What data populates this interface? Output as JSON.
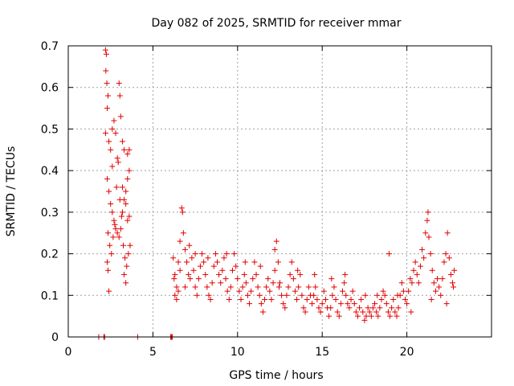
{
  "chart_data": {
    "type": "scatter",
    "title": "Day 082 of 2025, SRMTID for receiver mmar",
    "xlabel": "GPS time / hours",
    "ylabel": "SRMTID / TECUs",
    "xlim": [
      0,
      25
    ],
    "ylim": [
      0,
      0.7
    ],
    "xticks": [
      0,
      5,
      10,
      15,
      20
    ],
    "xtick_labels": [
      "0",
      "5",
      "10",
      "15",
      "20"
    ],
    "yticks": [
      0,
      0.1,
      0.2,
      0.3,
      0.4,
      0.5,
      0.6,
      0.7
    ],
    "ytick_labels": [
      "0",
      "0.1",
      "0.2",
      "0.3",
      "0.4",
      "0.5",
      "0.6",
      "0.7"
    ],
    "grid": true,
    "marker": "+",
    "color": "#e00000",
    "series": [
      {
        "name": "SRMTID",
        "points": [
          [
            1.8,
            0.0
          ],
          [
            2.1,
            0.0
          ],
          [
            2.15,
            0.0
          ],
          [
            4.1,
            0.0
          ],
          [
            6.05,
            0.0
          ],
          [
            6.1,
            0.0
          ],
          [
            6.15,
            0.0
          ],
          [
            2.2,
            0.69
          ],
          [
            2.25,
            0.68
          ],
          [
            2.22,
            0.64
          ],
          [
            2.28,
            0.61
          ],
          [
            2.3,
            0.55
          ],
          [
            2.35,
            0.58
          ],
          [
            2.2,
            0.49
          ],
          [
            2.4,
            0.47
          ],
          [
            2.5,
            0.45
          ],
          [
            2.6,
            0.5
          ],
          [
            2.7,
            0.52
          ],
          [
            2.8,
            0.49
          ],
          [
            3.0,
            0.61
          ],
          [
            3.05,
            0.58
          ],
          [
            3.1,
            0.53
          ],
          [
            3.2,
            0.47
          ],
          [
            3.3,
            0.45
          ],
          [
            3.5,
            0.44
          ],
          [
            3.6,
            0.45
          ],
          [
            2.3,
            0.38
          ],
          [
            2.4,
            0.35
          ],
          [
            2.5,
            0.32
          ],
          [
            2.6,
            0.3
          ],
          [
            2.7,
            0.28
          ],
          [
            2.8,
            0.26
          ],
          [
            2.9,
            0.25
          ],
          [
            3.0,
            0.24
          ],
          [
            3.1,
            0.26
          ],
          [
            3.2,
            0.3
          ],
          [
            3.3,
            0.33
          ],
          [
            3.4,
            0.35
          ],
          [
            3.5,
            0.38
          ],
          [
            3.6,
            0.4
          ],
          [
            2.35,
            0.25
          ],
          [
            2.45,
            0.22
          ],
          [
            2.55,
            0.2
          ],
          [
            2.65,
            0.24
          ],
          [
            2.75,
            0.27
          ],
          [
            2.85,
            0.36
          ],
          [
            2.95,
            0.42
          ],
          [
            3.05,
            0.33
          ],
          [
            3.15,
            0.29
          ],
          [
            3.25,
            0.22
          ],
          [
            3.35,
            0.19
          ],
          [
            3.45,
            0.17
          ],
          [
            3.55,
            0.2
          ],
          [
            3.65,
            0.22
          ],
          [
            3.3,
            0.15
          ],
          [
            3.4,
            0.13
          ],
          [
            2.3,
            0.18
          ],
          [
            2.35,
            0.16
          ],
          [
            2.4,
            0.11
          ],
          [
            3.5,
            0.28
          ],
          [
            3.6,
            0.29
          ],
          [
            2.6,
            0.41
          ],
          [
            2.9,
            0.43
          ],
          [
            3.2,
            0.36
          ],
          [
            3.4,
            0.32
          ],
          [
            6.2,
            0.19
          ],
          [
            6.3,
            0.15
          ],
          [
            6.4,
            0.12
          ],
          [
            6.5,
            0.18
          ],
          [
            6.6,
            0.23
          ],
          [
            6.7,
            0.31
          ],
          [
            6.75,
            0.3
          ],
          [
            6.8,
            0.25
          ],
          [
            6.9,
            0.21
          ],
          [
            7.0,
            0.18
          ],
          [
            7.1,
            0.15
          ],
          [
            7.2,
            0.14
          ],
          [
            6.3,
            0.1
          ],
          [
            6.4,
            0.09
          ],
          [
            6.5,
            0.11
          ],
          [
            6.6,
            0.16
          ],
          [
            7.3,
            0.19
          ],
          [
            7.4,
            0.16
          ],
          [
            7.5,
            0.12
          ],
          [
            7.6,
            0.1
          ],
          [
            7.7,
            0.14
          ],
          [
            7.8,
            0.17
          ],
          [
            7.9,
            0.2
          ],
          [
            8.0,
            0.18
          ],
          [
            8.1,
            0.15
          ],
          [
            8.2,
            0.12
          ],
          [
            8.3,
            0.1
          ],
          [
            8.4,
            0.09
          ],
          [
            8.5,
            0.13
          ],
          [
            8.6,
            0.17
          ],
          [
            8.7,
            0.2
          ],
          [
            8.8,
            0.18
          ],
          [
            8.9,
            0.15
          ],
          [
            9.0,
            0.13
          ],
          [
            9.1,
            0.16
          ],
          [
            9.2,
            0.19
          ],
          [
            9.3,
            0.14
          ],
          [
            9.4,
            0.11
          ],
          [
            9.5,
            0.09
          ],
          [
            9.6,
            0.12
          ],
          [
            9.7,
            0.16
          ],
          [
            9.8,
            0.2
          ],
          [
            9.9,
            0.17
          ],
          [
            10.0,
            0.14
          ],
          [
            10.1,
            0.11
          ],
          [
            10.2,
            0.09
          ],
          [
            10.3,
            0.12
          ],
          [
            10.4,
            0.15
          ],
          [
            10.5,
            0.13
          ],
          [
            10.6,
            0.1
          ],
          [
            10.7,
            0.08
          ],
          [
            10.8,
            0.11
          ],
          [
            10.9,
            0.14
          ],
          [
            11.0,
            0.18
          ],
          [
            11.1,
            0.15
          ],
          [
            11.2,
            0.12
          ],
          [
            11.3,
            0.1
          ],
          [
            11.4,
            0.08
          ],
          [
            11.5,
            0.06
          ],
          [
            11.6,
            0.09
          ],
          [
            11.7,
            0.12
          ],
          [
            11.8,
            0.14
          ],
          [
            11.9,
            0.11
          ],
          [
            12.0,
            0.09
          ],
          [
            12.1,
            0.13
          ],
          [
            12.2,
            0.16
          ],
          [
            12.3,
            0.23
          ],
          [
            12.4,
            0.18
          ],
          [
            12.5,
            0.13
          ],
          [
            12.6,
            0.1
          ],
          [
            12.7,
            0.08
          ],
          [
            12.8,
            0.07
          ],
          [
            12.9,
            0.1
          ],
          [
            13.0,
            0.12
          ],
          [
            13.1,
            0.15
          ],
          [
            13.2,
            0.18
          ],
          [
            13.3,
            0.14
          ],
          [
            13.4,
            0.11
          ],
          [
            13.5,
            0.09
          ],
          [
            13.6,
            0.12
          ],
          [
            13.7,
            0.15
          ],
          [
            13.8,
            0.1
          ],
          [
            13.9,
            0.07
          ],
          [
            14.0,
            0.06
          ],
          [
            14.1,
            0.09
          ],
          [
            14.2,
            0.12
          ],
          [
            14.3,
            0.1
          ],
          [
            14.4,
            0.08
          ],
          [
            14.5,
            0.1
          ],
          [
            14.6,
            0.12
          ],
          [
            14.7,
            0.09
          ],
          [
            14.8,
            0.07
          ],
          [
            14.9,
            0.06
          ],
          [
            15.0,
            0.08
          ],
          [
            15.1,
            0.11
          ],
          [
            15.2,
            0.09
          ],
          [
            15.3,
            0.07
          ],
          [
            15.4,
            0.05
          ],
          [
            15.5,
            0.07
          ],
          [
            15.6,
            0.1
          ],
          [
            15.7,
            0.12
          ],
          [
            15.8,
            0.09
          ],
          [
            15.9,
            0.06
          ],
          [
            16.0,
            0.05
          ],
          [
            16.1,
            0.08
          ],
          [
            16.2,
            0.11
          ],
          [
            16.3,
            0.13
          ],
          [
            16.4,
            0.1
          ],
          [
            16.5,
            0.08
          ],
          [
            16.6,
            0.07
          ],
          [
            16.7,
            0.09
          ],
          [
            16.8,
            0.11
          ],
          [
            16.9,
            0.08
          ],
          [
            17.0,
            0.06
          ],
          [
            17.1,
            0.05
          ],
          [
            17.2,
            0.07
          ],
          [
            17.3,
            0.09
          ],
          [
            17.4,
            0.06
          ],
          [
            17.5,
            0.04
          ],
          [
            17.6,
            0.05
          ],
          [
            17.7,
            0.07
          ],
          [
            17.8,
            0.06
          ],
          [
            17.9,
            0.05
          ],
          [
            18.0,
            0.07
          ],
          [
            18.1,
            0.08
          ],
          [
            18.2,
            0.06
          ],
          [
            18.3,
            0.05
          ],
          [
            18.4,
            0.07
          ],
          [
            18.5,
            0.09
          ],
          [
            18.6,
            0.11
          ],
          [
            18.7,
            0.1
          ],
          [
            18.8,
            0.08
          ],
          [
            18.9,
            0.06
          ],
          [
            18.95,
            0.2
          ],
          [
            19.0,
            0.05
          ],
          [
            19.1,
            0.07
          ],
          [
            19.2,
            0.09
          ],
          [
            19.3,
            0.06
          ],
          [
            19.4,
            0.05
          ],
          [
            19.5,
            0.07
          ],
          [
            19.6,
            0.1
          ],
          [
            19.7,
            0.13
          ],
          [
            19.8,
            0.11
          ],
          [
            19.9,
            0.09
          ],
          [
            20.0,
            0.08
          ],
          [
            20.1,
            0.11
          ],
          [
            20.2,
            0.14
          ],
          [
            20.3,
            0.13
          ],
          [
            20.4,
            0.16
          ],
          [
            20.5,
            0.18
          ],
          [
            20.6,
            0.15
          ],
          [
            20.7,
            0.13
          ],
          [
            20.8,
            0.17
          ],
          [
            20.9,
            0.21
          ],
          [
            21.0,
            0.19
          ],
          [
            21.1,
            0.25
          ],
          [
            21.2,
            0.28
          ],
          [
            21.25,
            0.3
          ],
          [
            21.3,
            0.24
          ],
          [
            21.4,
            0.2
          ],
          [
            21.5,
            0.16
          ],
          [
            21.6,
            0.13
          ],
          [
            21.7,
            0.11
          ],
          [
            21.8,
            0.14
          ],
          [
            21.9,
            0.12
          ],
          [
            22.0,
            0.1
          ],
          [
            22.1,
            0.14
          ],
          [
            22.2,
            0.18
          ],
          [
            22.3,
            0.2
          ],
          [
            22.4,
            0.25
          ],
          [
            22.5,
            0.19
          ],
          [
            22.6,
            0.15
          ],
          [
            22.7,
            0.13
          ],
          [
            22.8,
            0.16
          ],
          [
            22.75,
            0.12
          ],
          [
            6.25,
            0.14
          ],
          [
            6.9,
            0.12
          ],
          [
            7.15,
            0.22
          ],
          [
            8.25,
            0.19
          ],
          [
            9.35,
            0.2
          ],
          [
            10.45,
            0.18
          ],
          [
            11.35,
            0.17
          ],
          [
            12.45,
            0.12
          ],
          [
            13.55,
            0.16
          ],
          [
            14.55,
            0.15
          ],
          [
            15.55,
            0.14
          ],
          [
            16.35,
            0.15
          ],
          [
            17.55,
            0.1
          ],
          [
            18.25,
            0.1
          ],
          [
            19.45,
            0.1
          ],
          [
            20.25,
            0.06
          ],
          [
            21.45,
            0.09
          ],
          [
            22.35,
            0.08
          ],
          [
            12.2,
            0.21
          ],
          [
            7.5,
            0.2
          ]
        ]
      }
    ]
  }
}
